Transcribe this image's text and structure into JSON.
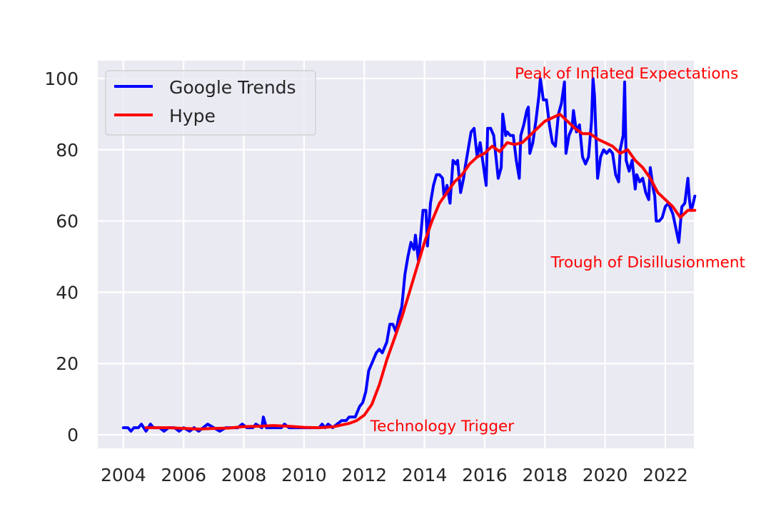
{
  "chart_data": {
    "type": "line",
    "title": "",
    "xlabel": "",
    "ylabel": "",
    "xlim": [
      2003.15,
      2022.95
    ],
    "ylim": [
      -3.8,
      105
    ],
    "x_ticks": [
      2004,
      2006,
      2008,
      2010,
      2012,
      2014,
      2016,
      2018,
      2020,
      2022
    ],
    "x_tick_labels": [
      "2004",
      "2006",
      "2008",
      "2010",
      "2012",
      "2014",
      "2016",
      "2018",
      "2020",
      "2022"
    ],
    "y_ticks": [
      0,
      20,
      40,
      60,
      80,
      100
    ],
    "y_tick_labels": [
      "0",
      "20",
      "40",
      "60",
      "80",
      "100"
    ],
    "grid": true,
    "background": "#eaeaf2",
    "legend": {
      "placement": "top-left",
      "entries": [
        "Google Trends",
        "Hype"
      ]
    },
    "series": [
      {
        "name": "Google Trends",
        "color": "#0000ff",
        "points": [
          [
            2004.0,
            2
          ],
          [
            2004.15,
            2
          ],
          [
            2004.25,
            1
          ],
          [
            2004.35,
            2
          ],
          [
            2004.5,
            2
          ],
          [
            2004.6,
            3
          ],
          [
            2004.75,
            1
          ],
          [
            2004.9,
            3
          ],
          [
            2005.0,
            2
          ],
          [
            2005.2,
            2
          ],
          [
            2005.35,
            1
          ],
          [
            2005.5,
            2
          ],
          [
            2005.7,
            2
          ],
          [
            2005.85,
            1
          ],
          [
            2006.0,
            2
          ],
          [
            2006.2,
            1
          ],
          [
            2006.35,
            2
          ],
          [
            2006.5,
            1
          ],
          [
            2006.65,
            2
          ],
          [
            2006.8,
            3
          ],
          [
            2007.0,
            2
          ],
          [
            2007.2,
            1
          ],
          [
            2007.4,
            2
          ],
          [
            2007.6,
            2
          ],
          [
            2007.8,
            2
          ],
          [
            2007.95,
            3
          ],
          [
            2008.1,
            2
          ],
          [
            2008.3,
            2
          ],
          [
            2008.4,
            3
          ],
          [
            2008.6,
            2
          ],
          [
            2008.65,
            5
          ],
          [
            2008.75,
            2
          ],
          [
            2009.0,
            2
          ],
          [
            2009.25,
            2
          ],
          [
            2009.35,
            3
          ],
          [
            2009.5,
            2
          ],
          [
            2009.75,
            2
          ],
          [
            2010.0,
            2
          ],
          [
            2010.3,
            2
          ],
          [
            2010.5,
            2
          ],
          [
            2010.6,
            3
          ],
          [
            2010.7,
            2
          ],
          [
            2010.8,
            3
          ],
          [
            2010.95,
            2
          ],
          [
            2011.1,
            3
          ],
          [
            2011.25,
            4
          ],
          [
            2011.4,
            4
          ],
          [
            2011.5,
            5
          ],
          [
            2011.7,
            5
          ],
          [
            2011.85,
            8
          ],
          [
            2011.95,
            9
          ],
          [
            2012.05,
            12
          ],
          [
            2012.15,
            18
          ],
          [
            2012.25,
            20
          ],
          [
            2012.4,
            23
          ],
          [
            2012.5,
            24
          ],
          [
            2012.6,
            23
          ],
          [
            2012.75,
            26
          ],
          [
            2012.85,
            31
          ],
          [
            2012.95,
            31
          ],
          [
            2013.05,
            29
          ],
          [
            2013.15,
            33
          ],
          [
            2013.25,
            36
          ],
          [
            2013.35,
            45
          ],
          [
            2013.45,
            50
          ],
          [
            2013.55,
            54
          ],
          [
            2013.65,
            52
          ],
          [
            2013.7,
            56
          ],
          [
            2013.8,
            49
          ],
          [
            2013.9,
            58
          ],
          [
            2013.95,
            63
          ],
          [
            2014.05,
            63
          ],
          [
            2014.1,
            53
          ],
          [
            2014.2,
            65
          ],
          [
            2014.3,
            70
          ],
          [
            2014.4,
            73
          ],
          [
            2014.5,
            73
          ],
          [
            2014.6,
            72
          ],
          [
            2014.65,
            67
          ],
          [
            2014.75,
            70
          ],
          [
            2014.85,
            65
          ],
          [
            2014.95,
            77
          ],
          [
            2015.05,
            76
          ],
          [
            2015.1,
            77
          ],
          [
            2015.2,
            68
          ],
          [
            2015.3,
            72
          ],
          [
            2015.35,
            75
          ],
          [
            2015.45,
            80
          ],
          [
            2015.55,
            85
          ],
          [
            2015.65,
            86
          ],
          [
            2015.75,
            78
          ],
          [
            2015.85,
            82
          ],
          [
            2015.95,
            76
          ],
          [
            2016.05,
            70
          ],
          [
            2016.1,
            86
          ],
          [
            2016.2,
            86
          ],
          [
            2016.3,
            84
          ],
          [
            2016.35,
            80
          ],
          [
            2016.45,
            72
          ],
          [
            2016.55,
            75
          ],
          [
            2016.6,
            90
          ],
          [
            2016.7,
            84
          ],
          [
            2016.75,
            85
          ],
          [
            2016.85,
            84
          ],
          [
            2016.95,
            84
          ],
          [
            2017.05,
            77
          ],
          [
            2017.15,
            72
          ],
          [
            2017.2,
            84
          ],
          [
            2017.3,
            87
          ],
          [
            2017.4,
            91
          ],
          [
            2017.45,
            92
          ],
          [
            2017.5,
            79
          ],
          [
            2017.6,
            82
          ],
          [
            2017.7,
            88
          ],
          [
            2017.8,
            95
          ],
          [
            2017.85,
            100
          ],
          [
            2017.95,
            94
          ],
          [
            2018.05,
            94
          ],
          [
            2018.15,
            87
          ],
          [
            2018.25,
            82
          ],
          [
            2018.35,
            81
          ],
          [
            2018.45,
            90
          ],
          [
            2018.55,
            93
          ],
          [
            2018.65,
            99
          ],
          [
            2018.7,
            79
          ],
          [
            2018.8,
            84
          ],
          [
            2018.9,
            86
          ],
          [
            2018.95,
            91
          ],
          [
            2019.05,
            85
          ],
          [
            2019.15,
            87
          ],
          [
            2019.25,
            78
          ],
          [
            2019.35,
            76
          ],
          [
            2019.45,
            78
          ],
          [
            2019.55,
            88
          ],
          [
            2019.6,
            100
          ],
          [
            2019.65,
            95
          ],
          [
            2019.75,
            72
          ],
          [
            2019.85,
            78
          ],
          [
            2019.95,
            80
          ],
          [
            2020.05,
            79
          ],
          [
            2020.15,
            80
          ],
          [
            2020.25,
            79
          ],
          [
            2020.35,
            73
          ],
          [
            2020.45,
            71
          ],
          [
            2020.5,
            80
          ],
          [
            2020.6,
            84
          ],
          [
            2020.65,
            99
          ],
          [
            2020.7,
            77
          ],
          [
            2020.8,
            74
          ],
          [
            2020.9,
            77
          ],
          [
            2021.0,
            69
          ],
          [
            2021.05,
            73
          ],
          [
            2021.15,
            71
          ],
          [
            2021.25,
            72
          ],
          [
            2021.35,
            68
          ],
          [
            2021.45,
            66
          ],
          [
            2021.5,
            75
          ],
          [
            2021.6,
            69
          ],
          [
            2021.65,
            67
          ],
          [
            2021.7,
            60
          ],
          [
            2021.8,
            60
          ],
          [
            2021.9,
            61
          ],
          [
            2022.0,
            64
          ],
          [
            2022.1,
            65
          ],
          [
            2022.2,
            63
          ],
          [
            2022.25,
            62
          ],
          [
            2022.35,
            58
          ],
          [
            2022.45,
            54
          ],
          [
            2022.55,
            64
          ],
          [
            2022.65,
            65
          ],
          [
            2022.75,
            72
          ],
          [
            2022.8,
            66
          ],
          [
            2022.85,
            63
          ],
          [
            2022.9,
            64
          ],
          [
            2022.98,
            67
          ]
        ]
      },
      {
        "name": "Hype",
        "color": "#ff0000",
        "points": [
          [
            2004.75,
            2
          ],
          [
            2005.5,
            2
          ],
          [
            2006.5,
            1.6
          ],
          [
            2007.0,
            1.8
          ],
          [
            2007.5,
            1.9
          ],
          [
            2008.0,
            2.3
          ],
          [
            2008.5,
            2.4
          ],
          [
            2009.0,
            2.6
          ],
          [
            2009.5,
            2.4
          ],
          [
            2010.0,
            2.1
          ],
          [
            2010.5,
            2.0
          ],
          [
            2011.0,
            2.3
          ],
          [
            2011.5,
            3.2
          ],
          [
            2011.75,
            4.0
          ],
          [
            2012.0,
            5.5
          ],
          [
            2012.25,
            8.5
          ],
          [
            2012.5,
            14
          ],
          [
            2012.75,
            21
          ],
          [
            2013.0,
            27
          ],
          [
            2013.25,
            33
          ],
          [
            2013.5,
            40
          ],
          [
            2013.75,
            47
          ],
          [
            2014.0,
            54
          ],
          [
            2014.25,
            60
          ],
          [
            2014.5,
            65
          ],
          [
            2014.75,
            68
          ],
          [
            2015.0,
            71
          ],
          [
            2015.25,
            73
          ],
          [
            2015.5,
            76
          ],
          [
            2015.75,
            78
          ],
          [
            2016.0,
            79
          ],
          [
            2016.25,
            81
          ],
          [
            2016.5,
            79.5
          ],
          [
            2016.75,
            82
          ],
          [
            2017.0,
            81.5
          ],
          [
            2017.25,
            82
          ],
          [
            2017.5,
            84
          ],
          [
            2017.75,
            86
          ],
          [
            2018.0,
            88
          ],
          [
            2018.25,
            89
          ],
          [
            2018.5,
            90
          ],
          [
            2018.75,
            88
          ],
          [
            2019.0,
            86
          ],
          [
            2019.25,
            84.5
          ],
          [
            2019.5,
            84.5
          ],
          [
            2019.75,
            83
          ],
          [
            2020.0,
            82
          ],
          [
            2020.25,
            81
          ],
          [
            2020.5,
            79
          ],
          [
            2020.75,
            80
          ],
          [
            2021.0,
            77
          ],
          [
            2021.25,
            75
          ],
          [
            2021.5,
            72
          ],
          [
            2021.75,
            68
          ],
          [
            2022.0,
            66
          ],
          [
            2022.25,
            64
          ],
          [
            2022.5,
            61
          ],
          [
            2022.75,
            63
          ],
          [
            2022.98,
            63
          ]
        ]
      }
    ],
    "annotations": [
      {
        "text": "Peak of Inflated Expectations",
        "x": 2017.0,
        "y": 100
      },
      {
        "text": "Trough of Disillusionment",
        "x": 2018.2,
        "y": 47
      },
      {
        "text": "Technology Trigger",
        "x": 2012.2,
        "y": 1
      }
    ]
  }
}
